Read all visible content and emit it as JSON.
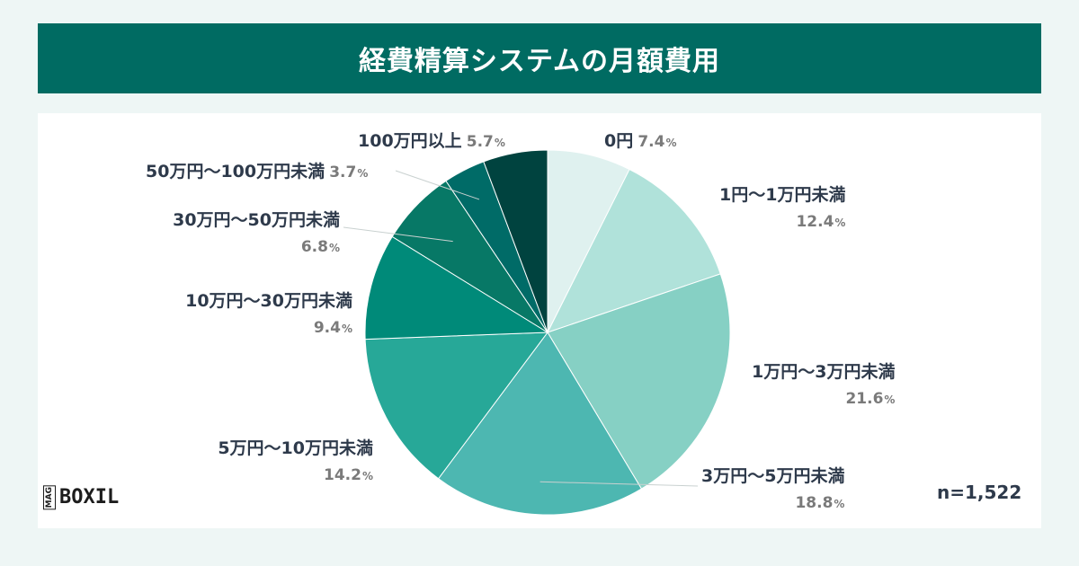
{
  "title": "経費精算システムの月額費用",
  "sample_size": "n=1,522",
  "logo": {
    "mag": "MAG",
    "name": "BOXIL"
  },
  "chart_data": {
    "type": "pie",
    "title": "経費精算システムの月額費用",
    "unit": "%",
    "slices": [
      {
        "label": "0円",
        "value": 7.4,
        "value_text": "7.4",
        "color": "#dff1ef"
      },
      {
        "label": "1円〜1万円未満",
        "value": 12.4,
        "value_text": "12.4",
        "color": "#b0e2da"
      },
      {
        "label": "1万円〜3万円未満",
        "value": 21.6,
        "value_text": "21.6",
        "color": "#86d0c4"
      },
      {
        "label": "3万円〜5万円未満",
        "value": 18.8,
        "value_text": "18.8",
        "color": "#4db7b1"
      },
      {
        "label": "5万円〜10万円未満",
        "value": 14.2,
        "value_text": "14.2",
        "color": "#27a898"
      },
      {
        "label": "10万円〜30万円未満",
        "value": 9.4,
        "value_text": "9.4",
        "color": "#008a79"
      },
      {
        "label": "30万円〜50万円未満",
        "value": 6.8,
        "value_text": "6.8",
        "color": "#077866"
      },
      {
        "label": "50万円〜100万円未満",
        "value": 3.7,
        "value_text": "3.7",
        "color": "#006b67"
      },
      {
        "label": "100万円以上",
        "value": 5.7,
        "value_text": "5.7",
        "color": "#00433f"
      }
    ]
  }
}
